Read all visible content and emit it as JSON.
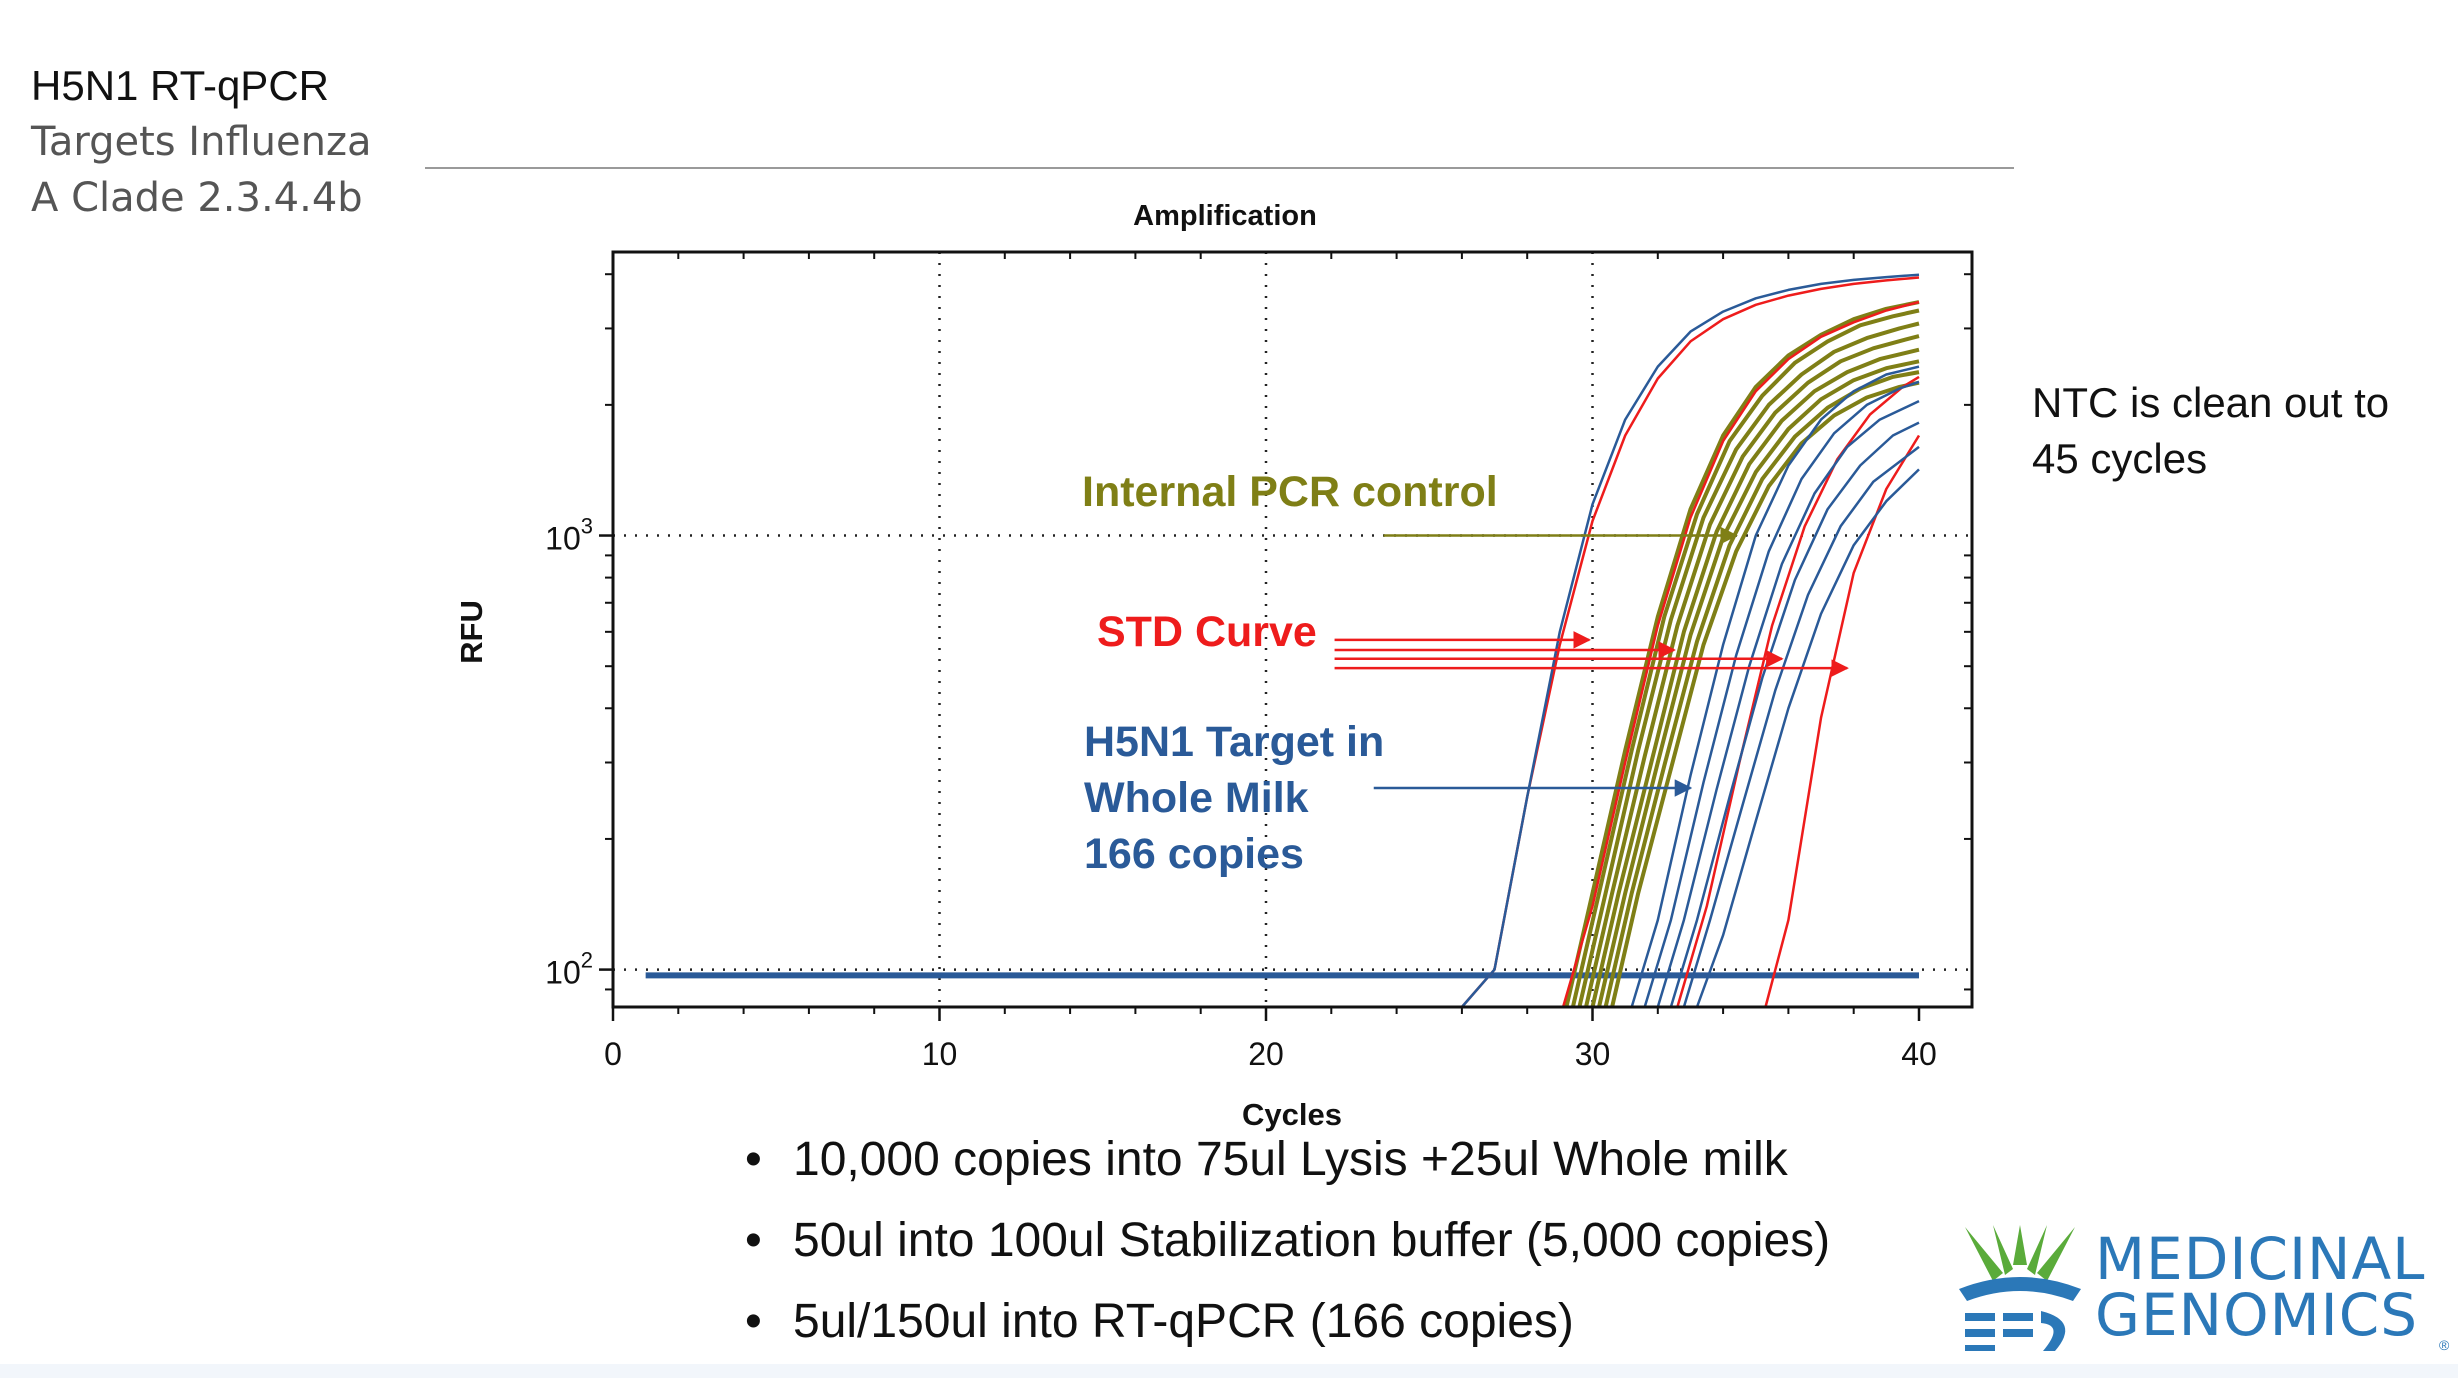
{
  "slide": {
    "title_line1": "H5N1 RT-qPCR",
    "title_line2": "Targets Influenza",
    "title_line3": "A Clade 2.3.4.4b",
    "note": "NTC is clean out to 45 cycles",
    "bullets": [
      "10,000 copies into 75ul Lysis +25ul Whole milk",
      "50ul into 100ul Stabilization buffer (5,000 copies)",
      "5ul/150ul into RT-qPCR (166 copies)"
    ],
    "logo": {
      "line1": "MEDICINAL",
      "line2": "GENOMICS",
      "registered": "®"
    }
  },
  "colors": {
    "internal_control": "#7f7f16",
    "std_curve": "#ee1c1c",
    "target": "#2a5a98",
    "logo_blue": "#2b78b8",
    "logo_green": "#5aab3a"
  },
  "chart_data": {
    "type": "line",
    "title": "Amplification",
    "xlabel": "Cycles",
    "ylabel": "RFU",
    "xlim": [
      0,
      42
    ],
    "ylim": [
      82,
      4500
    ],
    "yscale": "log",
    "xticks": [
      0,
      10,
      20,
      30,
      40
    ],
    "yticks": [
      {
        "value": 100,
        "base": "10",
        "exp": "2"
      },
      {
        "value": 1000,
        "base": "10",
        "exp": "3"
      }
    ],
    "grid": true,
    "baseline_rfu": 97,
    "baseline_x": [
      1,
      40
    ],
    "series": [
      {
        "name": "Internal PCR control",
        "color_key": "internal_control",
        "curves": [
          [
            [
              29.2,
              82
            ],
            [
              30,
              150
            ],
            [
              31,
              320
            ],
            [
              32,
              650
            ],
            [
              33,
              1150
            ],
            [
              34,
              1700
            ],
            [
              35,
              2200
            ],
            [
              36,
              2600
            ],
            [
              37,
              2900
            ],
            [
              38,
              3150
            ],
            [
              39,
              3330
            ],
            [
              40,
              3450
            ]
          ],
          [
            [
              29.4,
              82
            ],
            [
              30.2,
              150
            ],
            [
              31.2,
              320
            ],
            [
              32.2,
              650
            ],
            [
              33.2,
              1120
            ],
            [
              34.2,
              1650
            ],
            [
              35.2,
              2100
            ],
            [
              36.2,
              2500
            ],
            [
              37.2,
              2800
            ],
            [
              38.2,
              3050
            ],
            [
              39.2,
              3200
            ],
            [
              40,
              3300
            ]
          ],
          [
            [
              29.6,
              82
            ],
            [
              30.4,
              150
            ],
            [
              31.4,
              320
            ],
            [
              32.4,
              640
            ],
            [
              33.4,
              1100
            ],
            [
              34.4,
              1580
            ],
            [
              35.4,
              2000
            ],
            [
              36.4,
              2350
            ],
            [
              37.4,
              2650
            ],
            [
              38.4,
              2850
            ],
            [
              39.4,
              3000
            ],
            [
              40,
              3080
            ]
          ],
          [
            [
              29.8,
              82
            ],
            [
              30.6,
              150
            ],
            [
              31.6,
              310
            ],
            [
              32.6,
              620
            ],
            [
              33.6,
              1060
            ],
            [
              34.6,
              1520
            ],
            [
              35.6,
              1920
            ],
            [
              36.6,
              2250
            ],
            [
              37.6,
              2520
            ],
            [
              38.6,
              2700
            ],
            [
              39.6,
              2830
            ],
            [
              40,
              2880
            ]
          ],
          [
            [
              30,
              82
            ],
            [
              30.8,
              150
            ],
            [
              31.8,
              300
            ],
            [
              32.8,
              600
            ],
            [
              33.8,
              1020
            ],
            [
              34.8,
              1460
            ],
            [
              35.8,
              1840
            ],
            [
              36.8,
              2150
            ],
            [
              37.8,
              2380
            ],
            [
              38.8,
              2550
            ],
            [
              40,
              2680
            ]
          ],
          [
            [
              30.2,
              82
            ],
            [
              31,
              150
            ],
            [
              32,
              300
            ],
            [
              33,
              590
            ],
            [
              34,
              990
            ],
            [
              35,
              1400
            ],
            [
              36,
              1760
            ],
            [
              37,
              2060
            ],
            [
              38,
              2280
            ],
            [
              39,
              2430
            ],
            [
              40,
              2520
            ]
          ],
          [
            [
              30.4,
              82
            ],
            [
              31.2,
              150
            ],
            [
              32.2,
              295
            ],
            [
              33.2,
              570
            ],
            [
              34.2,
              950
            ],
            [
              35.2,
              1350
            ],
            [
              36.2,
              1690
            ],
            [
              37.2,
              1970
            ],
            [
              38.2,
              2180
            ],
            [
              39.2,
              2320
            ],
            [
              40,
              2380
            ]
          ],
          [
            [
              30.6,
              82
            ],
            [
              31.4,
              150
            ],
            [
              32.4,
              290
            ],
            [
              33.4,
              560
            ],
            [
              34.4,
              920
            ],
            [
              35.4,
              1300
            ],
            [
              36.4,
              1630
            ],
            [
              37.4,
              1890
            ],
            [
              38.4,
              2080
            ],
            [
              39.4,
              2200
            ],
            [
              40,
              2250
            ]
          ]
        ]
      },
      {
        "name": "STD Curve",
        "color_key": "std_curve",
        "curves": [
          [
            [
              26,
              82
            ],
            [
              27,
              100
            ],
            [
              28,
              250
            ],
            [
              29,
              560
            ],
            [
              30,
              1080
            ],
            [
              31,
              1700
            ],
            [
              32,
              2300
            ],
            [
              33,
              2800
            ],
            [
              34,
              3150
            ],
            [
              35,
              3400
            ],
            [
              36,
              3570
            ],
            [
              37,
              3700
            ],
            [
              38,
              3800
            ],
            [
              39,
              3870
            ],
            [
              40,
              3930
            ]
          ],
          [
            [
              29.1,
              82
            ],
            [
              30,
              140
            ],
            [
              31,
              300
            ],
            [
              32,
              620
            ],
            [
              33,
              1100
            ],
            [
              34,
              1650
            ],
            [
              35,
              2150
            ],
            [
              36,
              2550
            ],
            [
              37,
              2870
            ],
            [
              38,
              3100
            ],
            [
              39,
              3300
            ],
            [
              40,
              3450
            ]
          ],
          [
            [
              32.6,
              82
            ],
            [
              33.5,
              140
            ],
            [
              34.5,
              300
            ],
            [
              35.5,
              620
            ],
            [
              36.5,
              1050
            ],
            [
              37.5,
              1500
            ],
            [
              38.5,
              1900
            ],
            [
              39.5,
              2200
            ],
            [
              40,
              2320
            ]
          ],
          [
            [
              35.3,
              82
            ],
            [
              36,
              130
            ],
            [
              37,
              380
            ],
            [
              38,
              820
            ],
            [
              39,
              1280
            ],
            [
              40,
              1700
            ]
          ]
        ]
      },
      {
        "name": "H5N1 Target in Whole Milk 166 copies",
        "color_key": "target",
        "curves": [
          [
            [
              26,
              82
            ],
            [
              27,
              100
            ],
            [
              28,
              250
            ],
            [
              29,
              600
            ],
            [
              30,
              1180
            ],
            [
              31,
              1850
            ],
            [
              32,
              2450
            ],
            [
              33,
              2950
            ],
            [
              34,
              3280
            ],
            [
              35,
              3520
            ],
            [
              36,
              3680
            ],
            [
              37,
              3800
            ],
            [
              38,
              3880
            ],
            [
              39,
              3940
            ],
            [
              40,
              3990
            ]
          ],
          [
            [
              31.2,
              82
            ],
            [
              32,
              130
            ],
            [
              33,
              280
            ],
            [
              34,
              560
            ],
            [
              35,
              1000
            ],
            [
              36,
              1450
            ],
            [
              37,
              1850
            ],
            [
              38,
              2150
            ],
            [
              39,
              2350
            ],
            [
              40,
              2450
            ]
          ],
          [
            [
              31.6,
              82
            ],
            [
              32.4,
              130
            ],
            [
              33.4,
              270
            ],
            [
              34.4,
              530
            ],
            [
              35.4,
              920
            ],
            [
              36.4,
              1350
            ],
            [
              37.4,
              1720
            ],
            [
              38.4,
              2000
            ],
            [
              39.4,
              2180
            ],
            [
              40,
              2260
            ]
          ],
          [
            [
              32,
              82
            ],
            [
              32.8,
              130
            ],
            [
              33.8,
              260
            ],
            [
              34.8,
              500
            ],
            [
              35.8,
              860
            ],
            [
              36.8,
              1250
            ],
            [
              37.8,
              1600
            ],
            [
              38.8,
              1850
            ],
            [
              40,
              2040
            ]
          ],
          [
            [
              32.4,
              82
            ],
            [
              33.2,
              130
            ],
            [
              34.2,
              250
            ],
            [
              35.2,
              470
            ],
            [
              36.2,
              790
            ],
            [
              37.2,
              1150
            ],
            [
              38.2,
              1450
            ],
            [
              39.2,
              1700
            ],
            [
              40,
              1820
            ]
          ],
          [
            [
              32.8,
              82
            ],
            [
              33.6,
              130
            ],
            [
              34.6,
              240
            ],
            [
              35.6,
              440
            ],
            [
              36.6,
              730
            ],
            [
              37.6,
              1050
            ],
            [
              38.6,
              1330
            ],
            [
              40,
              1600
            ]
          ],
          [
            [
              33.2,
              82
            ],
            [
              34,
              120
            ],
            [
              35,
              220
            ],
            [
              36,
              400
            ],
            [
              37,
              660
            ],
            [
              38,
              950
            ],
            [
              39,
              1200
            ],
            [
              40,
              1420
            ]
          ]
        ]
      }
    ],
    "annotations": [
      {
        "text": "Internal PCR control",
        "color_key": "internal_control",
        "arrow_start": [
          23.6,
          1000
        ],
        "arrow_ends": [
          [
            34.4,
            1000
          ]
        ]
      },
      {
        "text": "STD Curve",
        "color_key": "std_curve",
        "arrow_start": [
          22.1,
          575
        ],
        "arrow_ends": [
          [
            29.9,
            575
          ],
          [
            32.5,
            545
          ],
          [
            35.8,
            520
          ],
          [
            37.8,
            495
          ]
        ]
      },
      {
        "lines": [
          "H5N1 Target in",
          "Whole Milk",
          "166 copies"
        ],
        "color_key": "target",
        "arrow_start": [
          23.3,
          262
        ],
        "arrow_ends": [
          [
            33.0,
            262
          ]
        ]
      }
    ]
  }
}
